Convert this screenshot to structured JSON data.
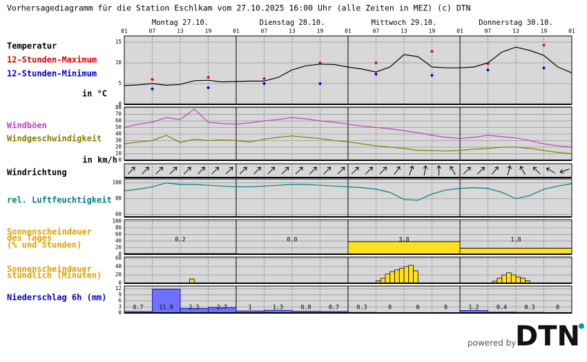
{
  "title": "Vorhersagediagramm für die Station Eschlkam vom 27.10.2025 16:00 Uhr (alle Zeiten in MEZ)   (c) DTN",
  "days": [
    "Montag 27.10.",
    "Dienstag 28.10.",
    "Mittwoch 29.10.",
    "Donnerstag 30.10."
  ],
  "xlim": [
    0,
    96
  ],
  "xticks": [
    {
      "value": 0,
      "label": "01"
    },
    {
      "value": 6,
      "label": "07"
    },
    {
      "value": 12,
      "label": "13"
    },
    {
      "value": 18,
      "label": "19"
    },
    {
      "value": 24,
      "label": "01"
    },
    {
      "value": 30,
      "label": "07"
    },
    {
      "value": 36,
      "label": "13"
    },
    {
      "value": 42,
      "label": "19"
    },
    {
      "value": 48,
      "label": "01"
    },
    {
      "value": 54,
      "label": "07"
    },
    {
      "value": 60,
      "label": "13"
    },
    {
      "value": 66,
      "label": "19"
    },
    {
      "value": 72,
      "label": "01"
    },
    {
      "value": 78,
      "label": "07"
    },
    {
      "value": 84,
      "label": "13"
    },
    {
      "value": 90,
      "label": "19"
    },
    {
      "value": 96,
      "label": "01"
    }
  ],
  "footer": {
    "powered_by": "powered by",
    "logo": "DTN"
  },
  "chart_data": [
    {
      "type": "line",
      "title": "Temperatur",
      "ylabel": "in °C",
      "ylim": [
        0,
        16.5
      ],
      "yticks": [
        0,
        5,
        10,
        15
      ],
      "series": [
        {
          "name": "12-Stunden-Maximum",
          "color": "#e00000",
          "type": "scatter",
          "x": [
            6,
            18,
            30,
            42,
            54,
            66,
            78,
            90
          ],
          "values": [
            6,
            6.5,
            6.2,
            10,
            10,
            12.8,
            9.8,
            14.3
          ]
        },
        {
          "name": "12-Stunden-Minimum",
          "color": "#0000d0",
          "type": "scatter",
          "x": [
            6,
            18,
            30,
            42,
            54,
            66,
            78,
            90
          ],
          "values": [
            3.7,
            4,
            5,
            5,
            7.3,
            7,
            8.3,
            8.8
          ]
        },
        {
          "color": "#000000",
          "type": "line",
          "x": [
            0,
            3,
            6,
            9,
            12,
            15,
            18,
            21,
            24,
            27,
            30,
            33,
            36,
            39,
            42,
            45,
            48,
            51,
            54,
            57,
            60,
            63,
            66,
            69,
            72,
            75,
            78,
            81,
            84,
            87,
            90,
            93,
            96
          ],
          "values": [
            4.5,
            4.7,
            5.0,
            4.6,
            4.8,
            5.7,
            5.8,
            5.4,
            5.5,
            5.6,
            5.6,
            6.5,
            8.3,
            9.3,
            9.7,
            9.6,
            9.0,
            8.5,
            7.8,
            9.0,
            12.0,
            11.5,
            9.0,
            8.8,
            8.8,
            9.0,
            10.0,
            12.6,
            13.8,
            13.0,
            11.8,
            9.0,
            7.6
          ]
        }
      ]
    },
    {
      "type": "line",
      "ylabel": "in km/h",
      "ylim": [
        0,
        81
      ],
      "yticks": [
        0,
        10,
        20,
        30,
        40,
        50,
        60,
        70,
        80
      ],
      "series": [
        {
          "name": "Windböen",
          "color": "#c040c0",
          "type": "line",
          "x": [
            0,
            3,
            6,
            9,
            12,
            15,
            18,
            21,
            24,
            27,
            30,
            33,
            36,
            39,
            42,
            45,
            48,
            51,
            54,
            57,
            60,
            63,
            66,
            69,
            72,
            75,
            78,
            81,
            84,
            87,
            90,
            93,
            96
          ],
          "values": [
            50,
            55,
            58,
            65,
            62,
            78,
            58,
            56,
            55,
            57,
            60,
            62,
            65,
            63,
            60,
            58,
            55,
            52,
            50,
            48,
            45,
            42,
            38,
            35,
            33,
            35,
            38,
            36,
            34,
            30,
            25,
            22,
            20
          ]
        },
        {
          "name": "Windgeschwindigkeit",
          "color": "#808000",
          "type": "line",
          "x": [
            0,
            3,
            6,
            9,
            12,
            15,
            18,
            21,
            24,
            27,
            30,
            33,
            36,
            39,
            42,
            45,
            48,
            51,
            54,
            57,
            60,
            63,
            66,
            69,
            72,
            75,
            78,
            81,
            84,
            87,
            90,
            93,
            96
          ],
          "values": [
            25,
            28,
            30,
            38,
            27,
            32,
            30,
            31,
            30,
            28,
            32,
            35,
            37,
            35,
            33,
            30,
            28,
            25,
            22,
            20,
            18,
            15,
            15,
            14,
            15,
            17,
            18,
            20,
            20,
            18,
            15,
            12,
            10
          ]
        }
      ]
    },
    {
      "type": "arrows",
      "title": "Windrichtung",
      "values": [
        45,
        45,
        45,
        45,
        45,
        45,
        45,
        45,
        45,
        45,
        45,
        45,
        45,
        45,
        45,
        45,
        45,
        45,
        45,
        35,
        20,
        10,
        0,
        330,
        45,
        45,
        40,
        15,
        330,
        315,
        300,
        250
      ]
    },
    {
      "type": "line",
      "ylim": [
        57,
        105
      ],
      "yticks": [
        60,
        80,
        100
      ],
      "series": [
        {
          "name": "rel. Luftfeuchtigkeit",
          "color": "#008080",
          "type": "line",
          "x": [
            0,
            3,
            6,
            9,
            12,
            15,
            18,
            21,
            24,
            27,
            30,
            33,
            36,
            39,
            42,
            45,
            48,
            51,
            54,
            57,
            60,
            63,
            66,
            69,
            72,
            75,
            78,
            81,
            84,
            87,
            90,
            93,
            96
          ],
          "values": [
            90,
            92,
            95,
            100,
            98,
            98,
            97,
            96,
            95,
            95,
            96,
            97,
            98,
            98,
            97,
            96,
            95,
            94,
            92,
            88,
            79,
            78,
            86,
            91,
            93,
            94,
            93,
            88,
            80,
            84,
            92,
            96,
            99
          ]
        }
      ]
    },
    {
      "type": "bar",
      "title_lines": [
        "Sonnenscheindauer",
        "des Tages",
        "(% und Stunden)"
      ],
      "title_color": "#e0a000",
      "ylim": [
        0,
        105
      ],
      "yticks": [
        0,
        20,
        40,
        60,
        80,
        100
      ],
      "color": "#ffe020",
      "values": [
        2,
        0,
        38,
        18
      ],
      "hours": [
        0.2,
        0,
        3.8,
        1.8
      ],
      "hours_labels": [
        "0.2",
        "0.0",
        "3.8",
        "1.8"
      ]
    },
    {
      "type": "bar",
      "title_lines": [
        "Sonnenscheindauer",
        "stündlich (Minuten)"
      ],
      "title_color": "#e0a000",
      "ylim": [
        0,
        63
      ],
      "yticks": [
        0,
        20,
        40,
        60
      ],
      "color": "#ffe020",
      "x": [
        14,
        54,
        55,
        56,
        57,
        58,
        59,
        60,
        61,
        62,
        79,
        80,
        81,
        82,
        83,
        84,
        85,
        86
      ],
      "values": [
        10,
        6,
        12,
        22,
        28,
        32,
        36,
        40,
        43,
        30,
        5,
        12,
        20,
        25,
        20,
        15,
        12,
        6
      ]
    },
    {
      "type": "bar",
      "title": "Niederschlag 6h (mm)",
      "title_color": "#0000cc",
      "ylim": [
        0,
        13.4
      ],
      "yticks": [
        0,
        3,
        6,
        9,
        12
      ],
      "color": "#7070ff",
      "values": [
        0.7,
        11.9,
        2.3,
        2.7,
        1,
        1.3,
        0.8,
        0.7,
        0.3,
        0,
        0,
        0,
        1.2,
        0.4,
        0.3,
        0
      ]
    }
  ]
}
